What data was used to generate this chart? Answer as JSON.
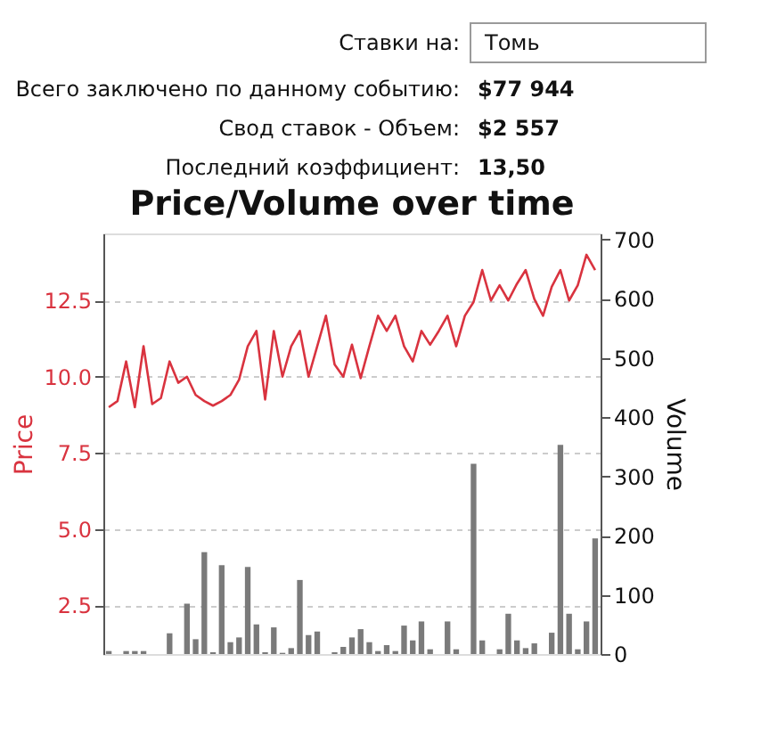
{
  "chart_data": [
    {
      "type": "other",
      "annotations": [
        "Ставки на:",
        "Томь",
        "Всего заключено по данному событию:",
        "$77 944",
        "Свод ставок - Объем:",
        "$2 557",
        "Последний коэффициент:",
        "13,50"
      ]
    },
    {
      "type": "line",
      "title": "Price/Volume over time",
      "ylabel": "Price",
      "y2label": "Volume",
      "categories": [
        null,
        null,
        null,
        null,
        null,
        null,
        null,
        null,
        null,
        null,
        null,
        null,
        null,
        null,
        null,
        null,
        null,
        null,
        null,
        null,
        null,
        null,
        null,
        null,
        null,
        null,
        null,
        null,
        null,
        null,
        null,
        null,
        null,
        null,
        null,
        null,
        null,
        null,
        null,
        null,
        null,
        null,
        null,
        null,
        null,
        null,
        null,
        null,
        null,
        null,
        null,
        null,
        null,
        null,
        null,
        null,
        null
      ],
      "series": [
        {
          "type": "bar",
          "axis": "y2",
          "color": "#7a7a7a",
          "values": [
            5,
            0,
            5,
            5,
            5,
            0,
            0,
            35,
            0,
            85,
            25,
            172,
            3,
            150,
            20,
            28,
            147,
            50,
            3,
            45,
            2,
            10,
            125,
            32,
            38,
            0,
            3,
            12,
            28,
            42,
            20,
            5,
            15,
            5,
            48,
            23,
            55,
            8,
            0,
            55,
            8,
            0,
            321,
            23,
            0,
            8,
            68,
            23,
            10,
            18,
            0,
            36,
            353,
            68,
            8,
            55,
            195
          ]
        },
        {
          "type": "line",
          "color": "#d9333f",
          "values": [
            9.0,
            9.2,
            10.5,
            9.0,
            11.0,
            9.1,
            9.3,
            10.5,
            9.8,
            10.0,
            9.4,
            9.2,
            9.05,
            9.2,
            9.4,
            9.9,
            11.0,
            11.5,
            9.25,
            11.5,
            10.0,
            11.0,
            11.5,
            10.0,
            11.0,
            12.0,
            10.4,
            10.0,
            11.05,
            9.95,
            11.0,
            12.0,
            11.5,
            12.0,
            11.0,
            10.5,
            11.5,
            11.05,
            11.5,
            12.0,
            11.0,
            12.0,
            12.45,
            13.5,
            12.5,
            13.0,
            12.5,
            13.05,
            13.5,
            12.55,
            12.0,
            12.95,
            13.5,
            12.5,
            13.0,
            14.0,
            13.5
          ]
        }
      ],
      "ylim": [
        0.9,
        14.7
      ],
      "yticks": [
        {
          "value": 2.5,
          "label": "2.5"
        },
        {
          "value": 5,
          "label": "5.0"
        },
        {
          "value": 7.5,
          "label": "7.5"
        },
        {
          "value": 10,
          "label": "10.0"
        },
        {
          "value": 12.5,
          "label": "12.5"
        }
      ],
      "y2lim": [
        0,
        710
      ],
      "y2ticks": [
        0,
        100,
        200,
        300,
        400,
        500,
        600,
        700
      ],
      "grid": "y",
      "marker": "none",
      "tick_labels": "y"
    }
  ]
}
